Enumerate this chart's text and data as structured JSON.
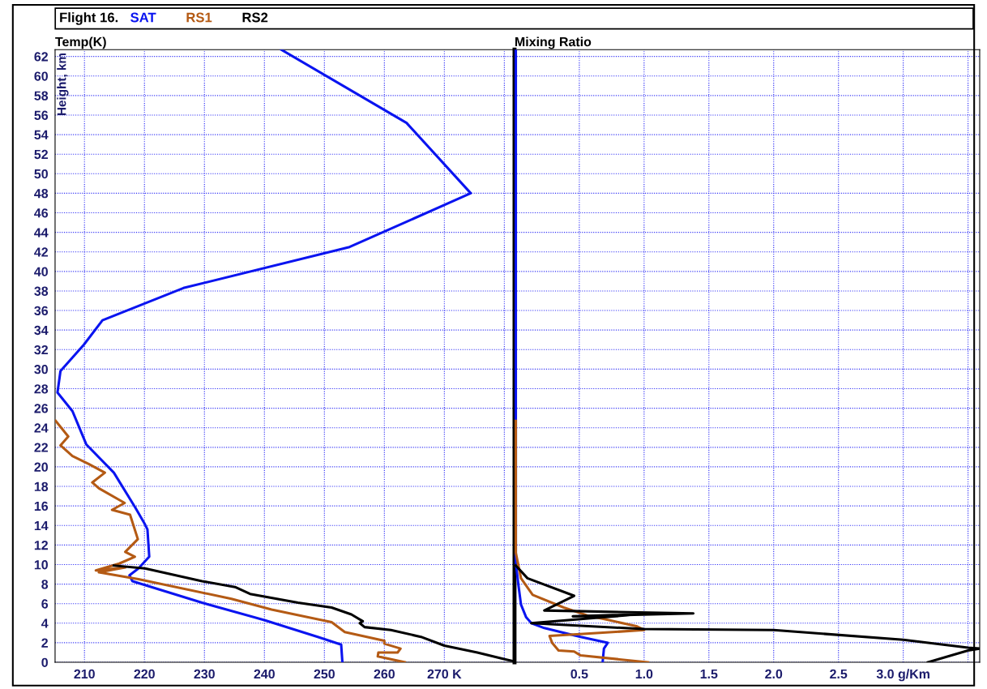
{
  "chart_data": [
    {
      "type": "line",
      "title": "Temp(K)",
      "ylabel": "Height, km",
      "annotations": [
        "Flight 16."
      ],
      "legend": "top",
      "grid": true,
      "marker": "none",
      "line_style": "solid",
      "xlim": [
        205.1,
        281.7
      ],
      "xticks": [
        210,
        220,
        230,
        240,
        250,
        260,
        {
          "value": 270,
          "label": "270 K"
        },
        {
          "value": 280,
          "label": null
        }
      ],
      "ylim": [
        0,
        62.7
      ],
      "yticks": [
        0,
        2,
        4,
        6,
        8,
        10,
        12,
        14,
        16,
        18,
        20,
        22,
        24,
        26,
        28,
        30,
        32,
        34,
        36,
        38,
        40,
        42,
        44,
        46,
        48,
        50,
        52,
        54,
        56,
        58,
        60,
        62
      ],
      "series": [
        {
          "name": "SAT",
          "color": "#0a14f0",
          "x": [
            242.8,
            263.7,
            274.4,
            254.2,
            226.5,
            213.0,
            209.9,
            206.0,
            205.5,
            208.0,
            210.3,
            214.9,
            218.5,
            220.1,
            220.5,
            220.8,
            219.0,
            217.5,
            218.0,
            229.6,
            240.1,
            248.9,
            252.8,
            253.0
          ],
          "values": [
            62.7,
            55.2,
            48.0,
            42.5,
            38.3,
            35.0,
            32.5,
            29.8,
            27.6,
            25.7,
            22.3,
            19.4,
            15.8,
            14.1,
            13.6,
            10.8,
            9.6,
            8.9,
            8.3,
            6.1,
            4.3,
            2.6,
            1.8,
            0
          ]
        },
        {
          "name": "RS1",
          "color": "#b45a14",
          "x": [
            205.2,
            207.3,
            206.0,
            208.0,
            210.7,
            213.4,
            211.3,
            212.4,
            216.7,
            214.6,
            217.6,
            218.9,
            216.8,
            218.4,
            215.8,
            211.9,
            216.8,
            212.4,
            219.0,
            234.5,
            241.2,
            251.2,
            253.4,
            260.0,
            260.0,
            262.7,
            262.2,
            259.0,
            258.9,
            263.4
          ],
          "values": [
            24.7,
            23.1,
            22.2,
            21.1,
            20.3,
            19.4,
            18.4,
            17.8,
            16.3,
            15.6,
            15.1,
            12.6,
            11.3,
            10.8,
            10.1,
            9.4,
            9.7,
            9.2,
            8.5,
            6.5,
            5.4,
            4.1,
            3.1,
            2.2,
            1.9,
            1.4,
            1.0,
            1.0,
            0.6,
            0
          ]
        },
        {
          "name": "RS2",
          "color": "#000000",
          "x": [
            214.9,
            220.1,
            229.6,
            235.1,
            237.6,
            245.6,
            251.2,
            254.5,
            256.4,
            255.9,
            256.7,
            261.1,
            266.1,
            270.0,
            275.5,
            280.2,
            281.6
          ],
          "values": [
            9.9,
            9.6,
            8.3,
            7.7,
            7.0,
            6.1,
            5.6,
            4.9,
            4.2,
            4.0,
            3.6,
            3.3,
            2.6,
            1.7,
            1.0,
            0.3,
            0.1
          ]
        }
      ]
    },
    {
      "type": "line",
      "title": "Mixing Ratio",
      "grid": true,
      "marker": "none",
      "line_style": "solid",
      "tick_labels": "x",
      "xlim": [
        0,
        3.59
      ],
      "xticks": [
        0.5,
        {
          "value": 1,
          "label": "1.0"
        },
        1.5,
        {
          "value": 2,
          "label": "2.0"
        },
        2.5,
        {
          "value": 3.0,
          "label": "3.0 g/Km"
        },
        {
          "value": 3.5,
          "label": null
        }
      ],
      "ylim": [
        0,
        62.7
      ],
      "yticks": [
        0,
        2,
        4,
        6,
        8,
        10,
        12,
        14,
        16,
        18,
        20,
        22,
        24,
        26,
        28,
        30,
        32,
        34,
        36,
        38,
        40,
        42,
        44,
        46,
        48,
        50,
        52,
        54,
        56,
        58,
        60,
        62
      ],
      "series": [
        {
          "color": "#0a14f0",
          "x": [
            0.01,
            0.01,
            0.03,
            0.05,
            0.09,
            0.13,
            0.23,
            0.51,
            0.72,
            0.69,
            0.68
          ],
          "values": [
            62.7,
            10.2,
            7.9,
            5.9,
            4.6,
            4.0,
            3.5,
            2.6,
            2.0,
            1.4,
            0
          ]
        },
        {
          "color": "#b45a14",
          "x": [
            0.01,
            0.01,
            0.03,
            0.05,
            0.14,
            0.38,
            0.56,
            0.94,
            1.0,
            0.53,
            0.27,
            0.29,
            0.34,
            0.46,
            0.51,
            1.03
          ],
          "values": [
            24.7,
            11.2,
            9.9,
            8.6,
            6.9,
            5.6,
            4.8,
            3.7,
            3.3,
            2.9,
            2.7,
            2.0,
            1.2,
            1.1,
            0.7,
            0
          ]
        },
        {
          "color": "#000000",
          "x": [
            0.01,
            0.1,
            0.46,
            0.23,
            1.38,
            0.45,
            0.95,
            0.13,
            1.0,
            2.0,
            3.0,
            3.5,
            3.59,
            3.5,
            3.19
          ],
          "values": [
            9.9,
            8.6,
            6.8,
            5.3,
            5.0,
            4.7,
            4.9,
            4.0,
            3.4,
            3.3,
            2.3,
            1.5,
            1.4,
            1.2,
            0
          ]
        }
      ]
    }
  ]
}
